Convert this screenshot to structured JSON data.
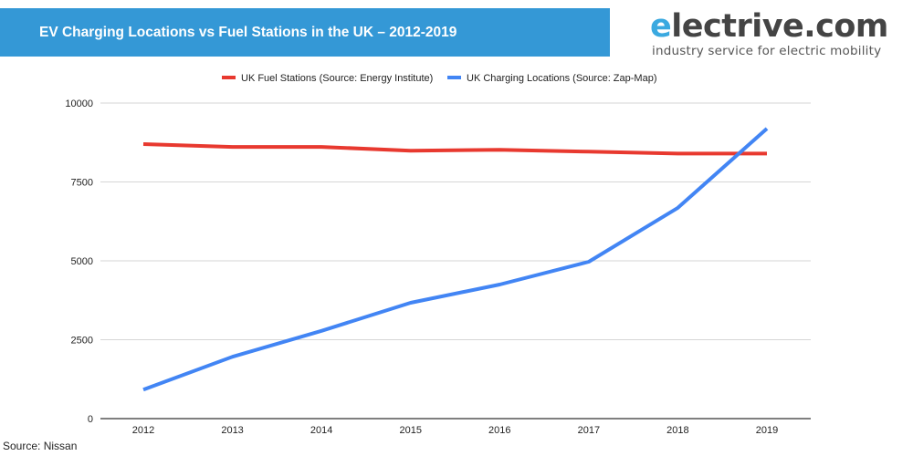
{
  "header": {
    "title": "EV Charging Locations vs Fuel Stations in the UK – 2012-2019",
    "banner_color": "#3498d6"
  },
  "logo": {
    "first_letter": "e",
    "rest": "lectrive.com",
    "tagline": "industry service for electric mobility"
  },
  "footer": {
    "source": "Source: Nissan"
  },
  "chart_data": {
    "type": "line",
    "title": "EV Charging Locations vs Fuel Stations in the UK – 2012-2019",
    "xlabel": "",
    "ylabel": "",
    "x": [
      "2012",
      "2013",
      "2014",
      "2015",
      "2016",
      "2017",
      "2018",
      "2019"
    ],
    "ylim": [
      0,
      10000
    ],
    "yticks": [
      0,
      2500,
      5000,
      7500,
      10000
    ],
    "grid": true,
    "legend_position": "top-center",
    "series": [
      {
        "name": "UK Fuel Stations (Source: Energy Institute)",
        "color": "#e8392f",
        "values": [
          8700,
          8610,
          8610,
          8490,
          8520,
          8460,
          8400,
          8400
        ]
      },
      {
        "name": "UK Charging Locations (Source: Zap-Map)",
        "color": "#4285f4",
        "values": [
          920,
          1960,
          2780,
          3670,
          4250,
          4970,
          6680,
          9190
        ]
      }
    ]
  }
}
